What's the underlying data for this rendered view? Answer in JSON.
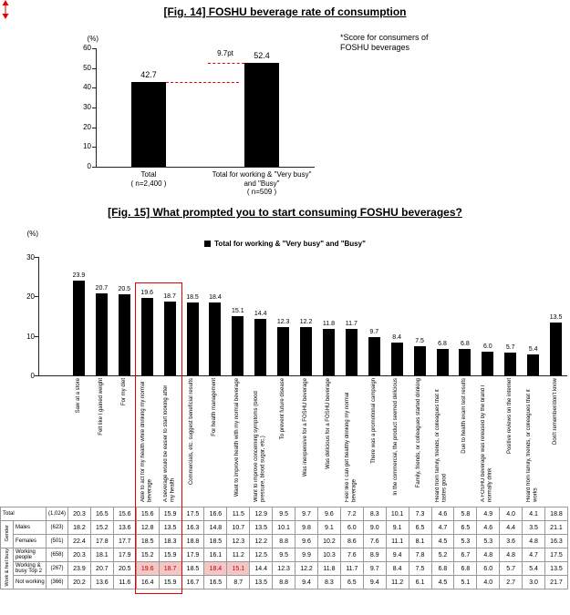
{
  "colors": {
    "bar": "#000000",
    "accent_red": "#e60000",
    "highlight_bg": "#f5c6c6",
    "highlight_text": "#c00000",
    "table_border": "#999999"
  },
  "chart_data": [
    {
      "id": "fig14",
      "type": "bar",
      "title": "[Fig. 14] FOSHU beverage rate of consumption",
      "note": "*Score for consumers of\nFOSHU beverages",
      "unit": "(%)",
      "annotation": {
        "label": "9.7pt",
        "color": "#e60000"
      },
      "categories": [
        "Total\n( n=2,400 )",
        "Total for working & \"Very busy\"\nand \"Busy\"\n( n=509 )"
      ],
      "values": [
        42.7,
        52.4
      ],
      "ylim": [
        0,
        60
      ],
      "yticks": [
        0,
        10,
        20,
        30,
        40,
        50,
        60
      ],
      "grid": false,
      "legend_position": "none"
    },
    {
      "id": "fig15",
      "type": "bar",
      "title": "[Fig. 15] What prompted you to start consuming FOSHU beverages?",
      "unit": "(%)",
      "legend": "Total for working & \"Very busy\" and \"Busy\"",
      "categories": [
        "Saw at a store",
        "Felt like I gained weight",
        "For my diet",
        "Able to act for my health while drinking my normal beverage",
        "A beverage would be easier to start looking after my health",
        "Commercials, etc. suggest beneficial results",
        "For health management",
        "Want to improve health with my normal beverage",
        "Want to improve concerning symptoms (blood pressure, blood sugar, etc.)",
        "To prevent future disease",
        "Was inexpensive for a FOSHU beverage",
        "Was delicious for a FOSHU beverage",
        "Feel like I can get healthy drinking my normal beverage",
        "There was a promotional campaign",
        "In the commercial, the product seemed delicious",
        "Family, friends, or colleagues started drinking",
        "Heard from family, friends, or colleagues that it tastes good",
        "Due to health exam test results",
        "A FOSHU beverage was released by the brand I normally drink",
        "Positive reviews on the internet",
        "Heard from family, friends, or colleagues that it works",
        "Don't remember/don't know"
      ],
      "values": [
        23.9,
        20.7,
        20.5,
        19.6,
        18.7,
        18.5,
        18.4,
        15.1,
        14.4,
        12.3,
        12.2,
        11.8,
        11.7,
        9.7,
        8.4,
        7.5,
        6.8,
        6.8,
        6.0,
        5.7,
        5.4,
        13.5
      ],
      "ylim": [
        0,
        30
      ],
      "yticks": [
        0,
        10,
        20,
        30
      ],
      "grid": false,
      "legend_position": "top",
      "highlight_columns": [
        3,
        4
      ]
    }
  ],
  "table": {
    "rows": [
      {
        "label": "Total",
        "label_colspan": 2,
        "n": "(1,024)",
        "values": [
          20.3,
          16.5,
          15.6,
          15.6,
          15.9,
          17.5,
          16.6,
          11.5,
          12.9,
          9.5,
          9.7,
          9.6,
          7.2,
          8.3,
          10.1,
          7.3,
          4.6,
          5.8,
          4.9,
          4.0,
          4.1,
          18.8
        ]
      },
      {
        "group": "Gender",
        "group_rowspan": 2,
        "label": "Males",
        "n": "(623)",
        "values": [
          18.2,
          15.2,
          13.6,
          12.8,
          13.5,
          16.3,
          14.8,
          10.7,
          13.5,
          10.1,
          9.8,
          9.1,
          6.0,
          9.0,
          9.1,
          6.5,
          4.7,
          6.5,
          4.6,
          4.4,
          3.5,
          21.1
        ]
      },
      {
        "label": "Females",
        "n": "(501)",
        "values": [
          22.4,
          17.8,
          17.7,
          18.5,
          18.3,
          18.8,
          18.5,
          12.3,
          12.2,
          8.8,
          9.6,
          10.2,
          8.6,
          7.6,
          11.1,
          8.1,
          4.5,
          5.3,
          5.3,
          3.6,
          4.8,
          16.3
        ]
      },
      {
        "group": "Work & feel busy",
        "group_rowspan": 3,
        "label": "Working people",
        "n": "(658)",
        "values": [
          20.3,
          18.1,
          17.9,
          15.2,
          15.9,
          17.9,
          16.1,
          11.2,
          12.5,
          9.5,
          9.9,
          10.3,
          7.6,
          8.9,
          9.4,
          7.8,
          5.2,
          6.7,
          4.8,
          4.8,
          4.7,
          17.5
        ]
      },
      {
        "label": "Working & busy Top 2",
        "n": "(267)",
        "highlight": [
          3,
          4,
          6,
          7
        ],
        "values": [
          23.9,
          20.7,
          20.5,
          19.6,
          18.7,
          18.5,
          18.4,
          15.1,
          14.4,
          12.3,
          12.2,
          11.8,
          11.7,
          9.7,
          8.4,
          7.5,
          6.8,
          6.8,
          6.0,
          5.7,
          5.4,
          13.5
        ]
      },
      {
        "label": "Not working",
        "n": "(366)",
        "values": [
          20.2,
          13.6,
          11.6,
          16.4,
          15.9,
          16.7,
          16.5,
          8.7,
          13.5,
          8.8,
          9.4,
          8.3,
          6.5,
          9.4,
          11.2,
          6.1,
          4.5,
          5.1,
          4.0,
          2.7,
          3.0,
          21.7
        ]
      }
    ]
  }
}
